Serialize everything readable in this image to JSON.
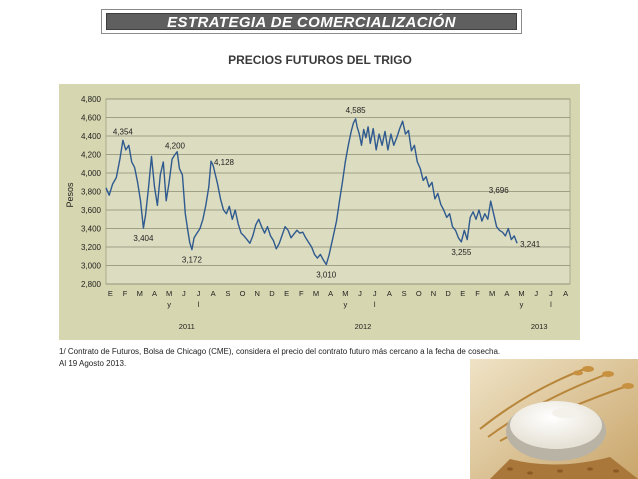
{
  "header": {
    "title": "ESTRATEGIA DE COMERCIALIZACIÓN"
  },
  "colors": {
    "line": "#2f5a8f",
    "panel": "#d6d6b0",
    "grid": "#8c8c74",
    "title_bar": "#5f5f5f"
  },
  "footnote": {
    "line1": "1/ Contrato de Futuros, Bolsa de Chicago (CME), considera el precio del contrato futuro más cercano a la fecha de cosecha.",
    "line2": "Al 19 Agosto 2013."
  },
  "photo": {
    "icon": "wheat-flour-bowl-photo"
  },
  "chart_data": {
    "type": "line",
    "title": "PRECIOS FUTUROS DEL TRIGO",
    "ylabel": "Pesos",
    "ylim": [
      2800,
      4800
    ],
    "yticks": [
      "2,800",
      "3,000",
      "3,200",
      "3,400",
      "3,600",
      "3,800",
      "4,000",
      "4,200",
      "4,400",
      "4,600",
      "4,800"
    ],
    "grid": true,
    "x_months": [
      [
        "E"
      ],
      [
        "F"
      ],
      [
        "M"
      ],
      [
        "A"
      ],
      [
        "M",
        "y"
      ],
      [
        "J"
      ],
      [
        "J",
        "l"
      ],
      [
        "A"
      ],
      [
        "S"
      ],
      [
        "O"
      ],
      [
        "N"
      ],
      [
        "D"
      ],
      [
        "E"
      ],
      [
        "F"
      ],
      [
        "M"
      ],
      [
        "A"
      ],
      [
        "M",
        "y"
      ],
      [
        "J"
      ],
      [
        "J",
        "l"
      ],
      [
        "A"
      ],
      [
        "S"
      ],
      [
        "O"
      ],
      [
        "N"
      ],
      [
        "D"
      ],
      [
        "E"
      ],
      [
        "F"
      ],
      [
        "M"
      ],
      [
        "A"
      ],
      [
        "M",
        "y"
      ],
      [
        "J"
      ],
      [
        "J",
        "l"
      ],
      [
        "A"
      ]
    ],
    "year_labels": [
      "2011",
      "2012",
      "2013"
    ],
    "x_range_months": [
      0,
      31.6
    ],
    "series": [
      {
        "points": [
          [
            0.0,
            3840
          ],
          [
            0.22,
            3760
          ],
          [
            0.45,
            3880
          ],
          [
            0.7,
            3950
          ],
          [
            0.95,
            4150
          ],
          [
            1.15,
            4354
          ],
          [
            1.35,
            4250
          ],
          [
            1.55,
            4300
          ],
          [
            1.75,
            4120
          ],
          [
            1.95,
            4060
          ],
          [
            2.15,
            3900
          ],
          [
            2.35,
            3700
          ],
          [
            2.55,
            3404
          ],
          [
            2.7,
            3550
          ],
          [
            2.9,
            3850
          ],
          [
            3.1,
            4180
          ],
          [
            3.3,
            3850
          ],
          [
            3.5,
            3650
          ],
          [
            3.7,
            3980
          ],
          [
            3.9,
            4120
          ],
          [
            4.1,
            3700
          ],
          [
            4.3,
            3900
          ],
          [
            4.5,
            4150
          ],
          [
            4.7,
            4200
          ],
          [
            4.85,
            4230
          ],
          [
            5.0,
            4050
          ],
          [
            5.2,
            3980
          ],
          [
            5.4,
            3560
          ],
          [
            5.55,
            3400
          ],
          [
            5.7,
            3250
          ],
          [
            5.85,
            3172
          ],
          [
            6.0,
            3300
          ],
          [
            6.2,
            3350
          ],
          [
            6.4,
            3400
          ],
          [
            6.6,
            3500
          ],
          [
            6.8,
            3650
          ],
          [
            7.0,
            3850
          ],
          [
            7.15,
            4128
          ],
          [
            7.3,
            4080
          ],
          [
            7.45,
            3980
          ],
          [
            7.6,
            3880
          ],
          [
            7.8,
            3720
          ],
          [
            8.0,
            3600
          ],
          [
            8.2,
            3560
          ],
          [
            8.4,
            3640
          ],
          [
            8.6,
            3500
          ],
          [
            8.8,
            3600
          ],
          [
            9.0,
            3450
          ],
          [
            9.2,
            3350
          ],
          [
            9.4,
            3320
          ],
          [
            9.6,
            3280
          ],
          [
            9.8,
            3240
          ],
          [
            10.0,
            3320
          ],
          [
            10.2,
            3440
          ],
          [
            10.4,
            3500
          ],
          [
            10.6,
            3420
          ],
          [
            10.8,
            3350
          ],
          [
            11.0,
            3420
          ],
          [
            11.2,
            3320
          ],
          [
            11.4,
            3270
          ],
          [
            11.6,
            3180
          ],
          [
            11.8,
            3240
          ],
          [
            12.0,
            3330
          ],
          [
            12.2,
            3420
          ],
          [
            12.4,
            3380
          ],
          [
            12.6,
            3300
          ],
          [
            12.8,
            3340
          ],
          [
            13.0,
            3380
          ],
          [
            13.2,
            3350
          ],
          [
            13.4,
            3360
          ],
          [
            13.6,
            3300
          ],
          [
            13.8,
            3250
          ],
          [
            14.0,
            3200
          ],
          [
            14.2,
            3120
          ],
          [
            14.4,
            3080
          ],
          [
            14.6,
            3120
          ],
          [
            14.8,
            3060
          ],
          [
            15.0,
            3010
          ],
          [
            15.2,
            3120
          ],
          [
            15.45,
            3300
          ],
          [
            15.7,
            3480
          ],
          [
            15.9,
            3700
          ],
          [
            16.1,
            3900
          ],
          [
            16.3,
            4120
          ],
          [
            16.5,
            4300
          ],
          [
            16.7,
            4450
          ],
          [
            16.85,
            4540
          ],
          [
            17.0,
            4585
          ],
          [
            17.1,
            4500
          ],
          [
            17.25,
            4420
          ],
          [
            17.4,
            4300
          ],
          [
            17.55,
            4470
          ],
          [
            17.7,
            4380
          ],
          [
            17.85,
            4500
          ],
          [
            18.0,
            4320
          ],
          [
            18.2,
            4480
          ],
          [
            18.4,
            4250
          ],
          [
            18.6,
            4420
          ],
          [
            18.8,
            4300
          ],
          [
            19.0,
            4450
          ],
          [
            19.2,
            4250
          ],
          [
            19.4,
            4420
          ],
          [
            19.6,
            4300
          ],
          [
            19.8,
            4380
          ],
          [
            20.0,
            4480
          ],
          [
            20.2,
            4560
          ],
          [
            20.4,
            4420
          ],
          [
            20.6,
            4460
          ],
          [
            20.8,
            4240
          ],
          [
            21.0,
            4300
          ],
          [
            21.2,
            4120
          ],
          [
            21.4,
            4050
          ],
          [
            21.6,
            3920
          ],
          [
            21.8,
            3960
          ],
          [
            22.0,
            3850
          ],
          [
            22.2,
            3900
          ],
          [
            22.4,
            3720
          ],
          [
            22.6,
            3780
          ],
          [
            22.8,
            3660
          ],
          [
            23.0,
            3600
          ],
          [
            23.2,
            3520
          ],
          [
            23.4,
            3560
          ],
          [
            23.6,
            3420
          ],
          [
            23.8,
            3380
          ],
          [
            24.0,
            3300
          ],
          [
            24.2,
            3255
          ],
          [
            24.4,
            3380
          ],
          [
            24.6,
            3280
          ],
          [
            24.8,
            3520
          ],
          [
            25.0,
            3580
          ],
          [
            25.2,
            3500
          ],
          [
            25.4,
            3600
          ],
          [
            25.6,
            3480
          ],
          [
            25.8,
            3560
          ],
          [
            26.0,
            3500
          ],
          [
            26.2,
            3696
          ],
          [
            26.4,
            3560
          ],
          [
            26.6,
            3420
          ],
          [
            26.8,
            3380
          ],
          [
            27.0,
            3360
          ],
          [
            27.2,
            3320
          ],
          [
            27.4,
            3400
          ],
          [
            27.6,
            3280
          ],
          [
            27.8,
            3320
          ],
          [
            28.0,
            3241
          ]
        ]
      }
    ],
    "annotations": [
      {
        "text": "4,354",
        "x": 1.15,
        "y": 4354,
        "pos": "above"
      },
      {
        "text": "3,404",
        "x": 2.55,
        "y": 3404,
        "pos": "below"
      },
      {
        "text": "4,200",
        "x": 4.7,
        "y": 4200,
        "pos": "above"
      },
      {
        "text": "3,172",
        "x": 5.85,
        "y": 3172,
        "pos": "below"
      },
      {
        "text": "4,128",
        "x": 7.15,
        "y": 4128,
        "pos": "right"
      },
      {
        "text": "3,010",
        "x": 15.0,
        "y": 3010,
        "pos": "below"
      },
      {
        "text": "4,585",
        "x": 17.0,
        "y": 4585,
        "pos": "above"
      },
      {
        "text": "3,255",
        "x": 24.2,
        "y": 3255,
        "pos": "below"
      },
      {
        "text": "3,696",
        "x": 26.2,
        "y": 3696,
        "pos": "above-right"
      },
      {
        "text": "3,241",
        "x": 28.0,
        "y": 3241,
        "pos": "right"
      }
    ]
  }
}
